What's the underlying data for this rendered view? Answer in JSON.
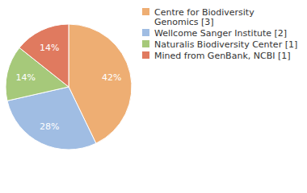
{
  "chart_data": {
    "type": "pie",
    "categories": [
      "Centre for Biodiversity Genomics [3]",
      "Wellcome Sanger Institute [2]",
      "Naturalis Biodiversity Center [1]",
      "Mined from GenBank, NCBI [1]"
    ],
    "values": [
      42,
      28,
      14,
      14
    ],
    "value_labels": [
      "42%",
      "28%",
      "14%",
      "14%"
    ],
    "colors": [
      "#eeae73",
      "#a0bde3",
      "#a6c97a",
      "#e07a5f"
    ],
    "data_labels": true,
    "legend": "right"
  }
}
